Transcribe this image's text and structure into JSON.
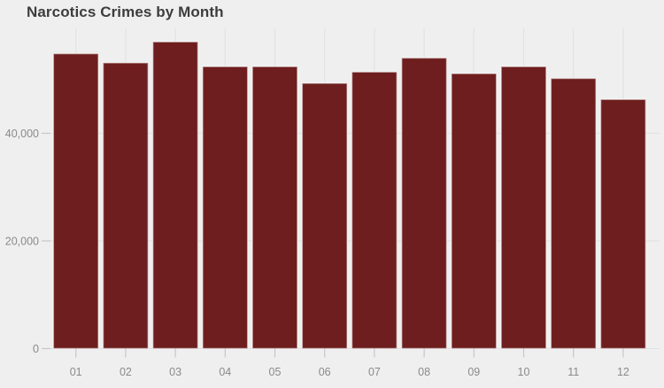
{
  "page": {
    "title": "Narcotics Crimes by Month"
  },
  "colors": {
    "background": "#efefef",
    "bar": "#6e1e1e",
    "bar_border": "#ffffff",
    "grid": "#e2e2e2",
    "tick": "#c7c7c7",
    "axis_label": "#8a8a8a",
    "title": "#3d3d3d"
  },
  "chart_data": {
    "type": "bar",
    "title": "Narcotics Crimes by Month",
    "xlabel": "",
    "ylabel": "",
    "categories": [
      "01",
      "02",
      "03",
      "04",
      "05",
      "06",
      "07",
      "08",
      "09",
      "10",
      "11",
      "12"
    ],
    "values": [
      54800,
      53100,
      57000,
      52400,
      52400,
      49300,
      51400,
      54000,
      51100,
      52400,
      50200,
      46300
    ],
    "ylim": [
      0,
      59500
    ],
    "yticks": [
      0,
      20000,
      40000
    ],
    "ytick_labels": [
      "0",
      "20,000",
      "40,000"
    ],
    "grid": "on",
    "legend": "none"
  }
}
